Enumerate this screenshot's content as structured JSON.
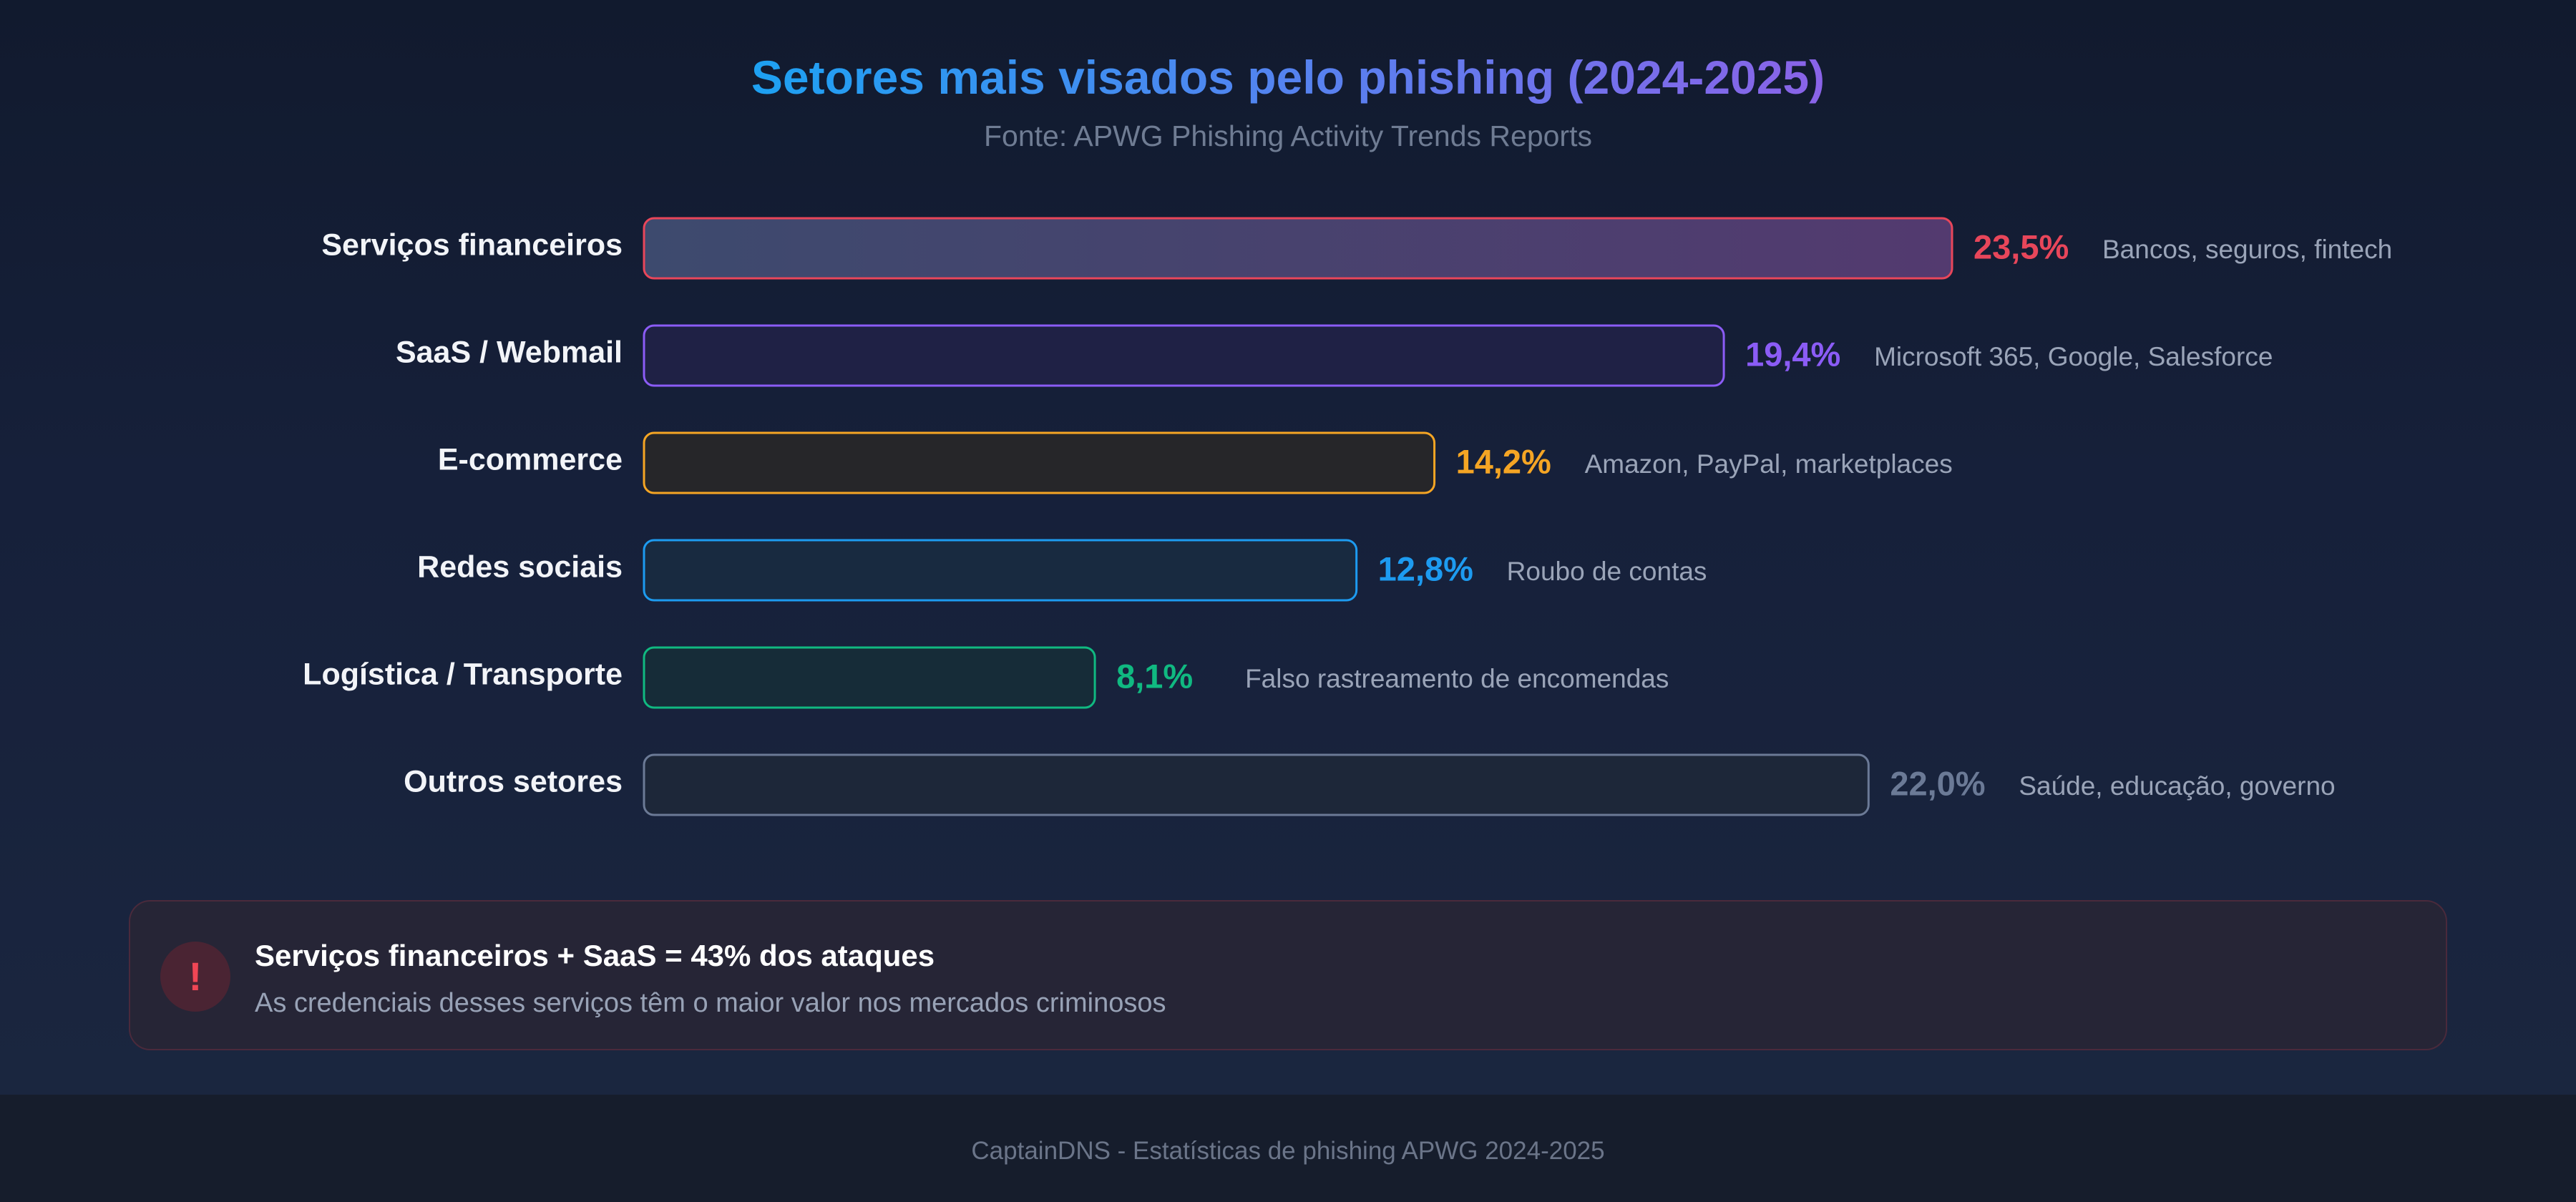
{
  "chart_data": {
    "type": "bar",
    "orientation": "horizontal",
    "title": "Setores mais visados pelo phishing (2024-2025)",
    "subtitle": "Fonte: APWG Phishing Activity Trends Reports",
    "unit": "%",
    "xlim": [
      0,
      23.5
    ],
    "grid": false,
    "categories": [
      "Serviços financeiros",
      "SaaS / Webmail",
      "E-commerce",
      "Redes sociais",
      "Logística / Transporte",
      "Outros setores"
    ],
    "values": [
      23.5,
      19.4,
      14.2,
      12.8,
      8.1,
      22.0
    ],
    "value_labels": [
      "23,5%",
      "19,4%",
      "14,2%",
      "12,8%",
      "8,1%",
      "22,0%"
    ],
    "annotations": [
      "Bancos, seguros, fintech",
      "Microsoft 365, Google, Salesforce",
      "Amazon, PayPal, marketplaces",
      "Roubo de contas",
      "Falso rastreamento de encomendas",
      "Saúde, educação, governo"
    ],
    "colors": [
      "#e8465a",
      "#8b5cf6",
      "#f5a524",
      "#1d9bf0",
      "#10b981",
      "#6b7a96"
    ],
    "fill_colors": [
      "#4a3f6e",
      "#1f2145",
      "#262629",
      "#182a40",
      "#162c38",
      "#1d2739"
    ]
  },
  "alert": {
    "icon": "exclamation-icon",
    "icon_glyph": "!",
    "title": "Serviços financeiros + SaaS = 43% dos ataques",
    "text": "As credenciais desses serviços têm o maior valor nos mercados criminosos"
  },
  "footer": {
    "text": "CaptainDNS - Estatísticas de phishing APWG 2024-2025"
  }
}
